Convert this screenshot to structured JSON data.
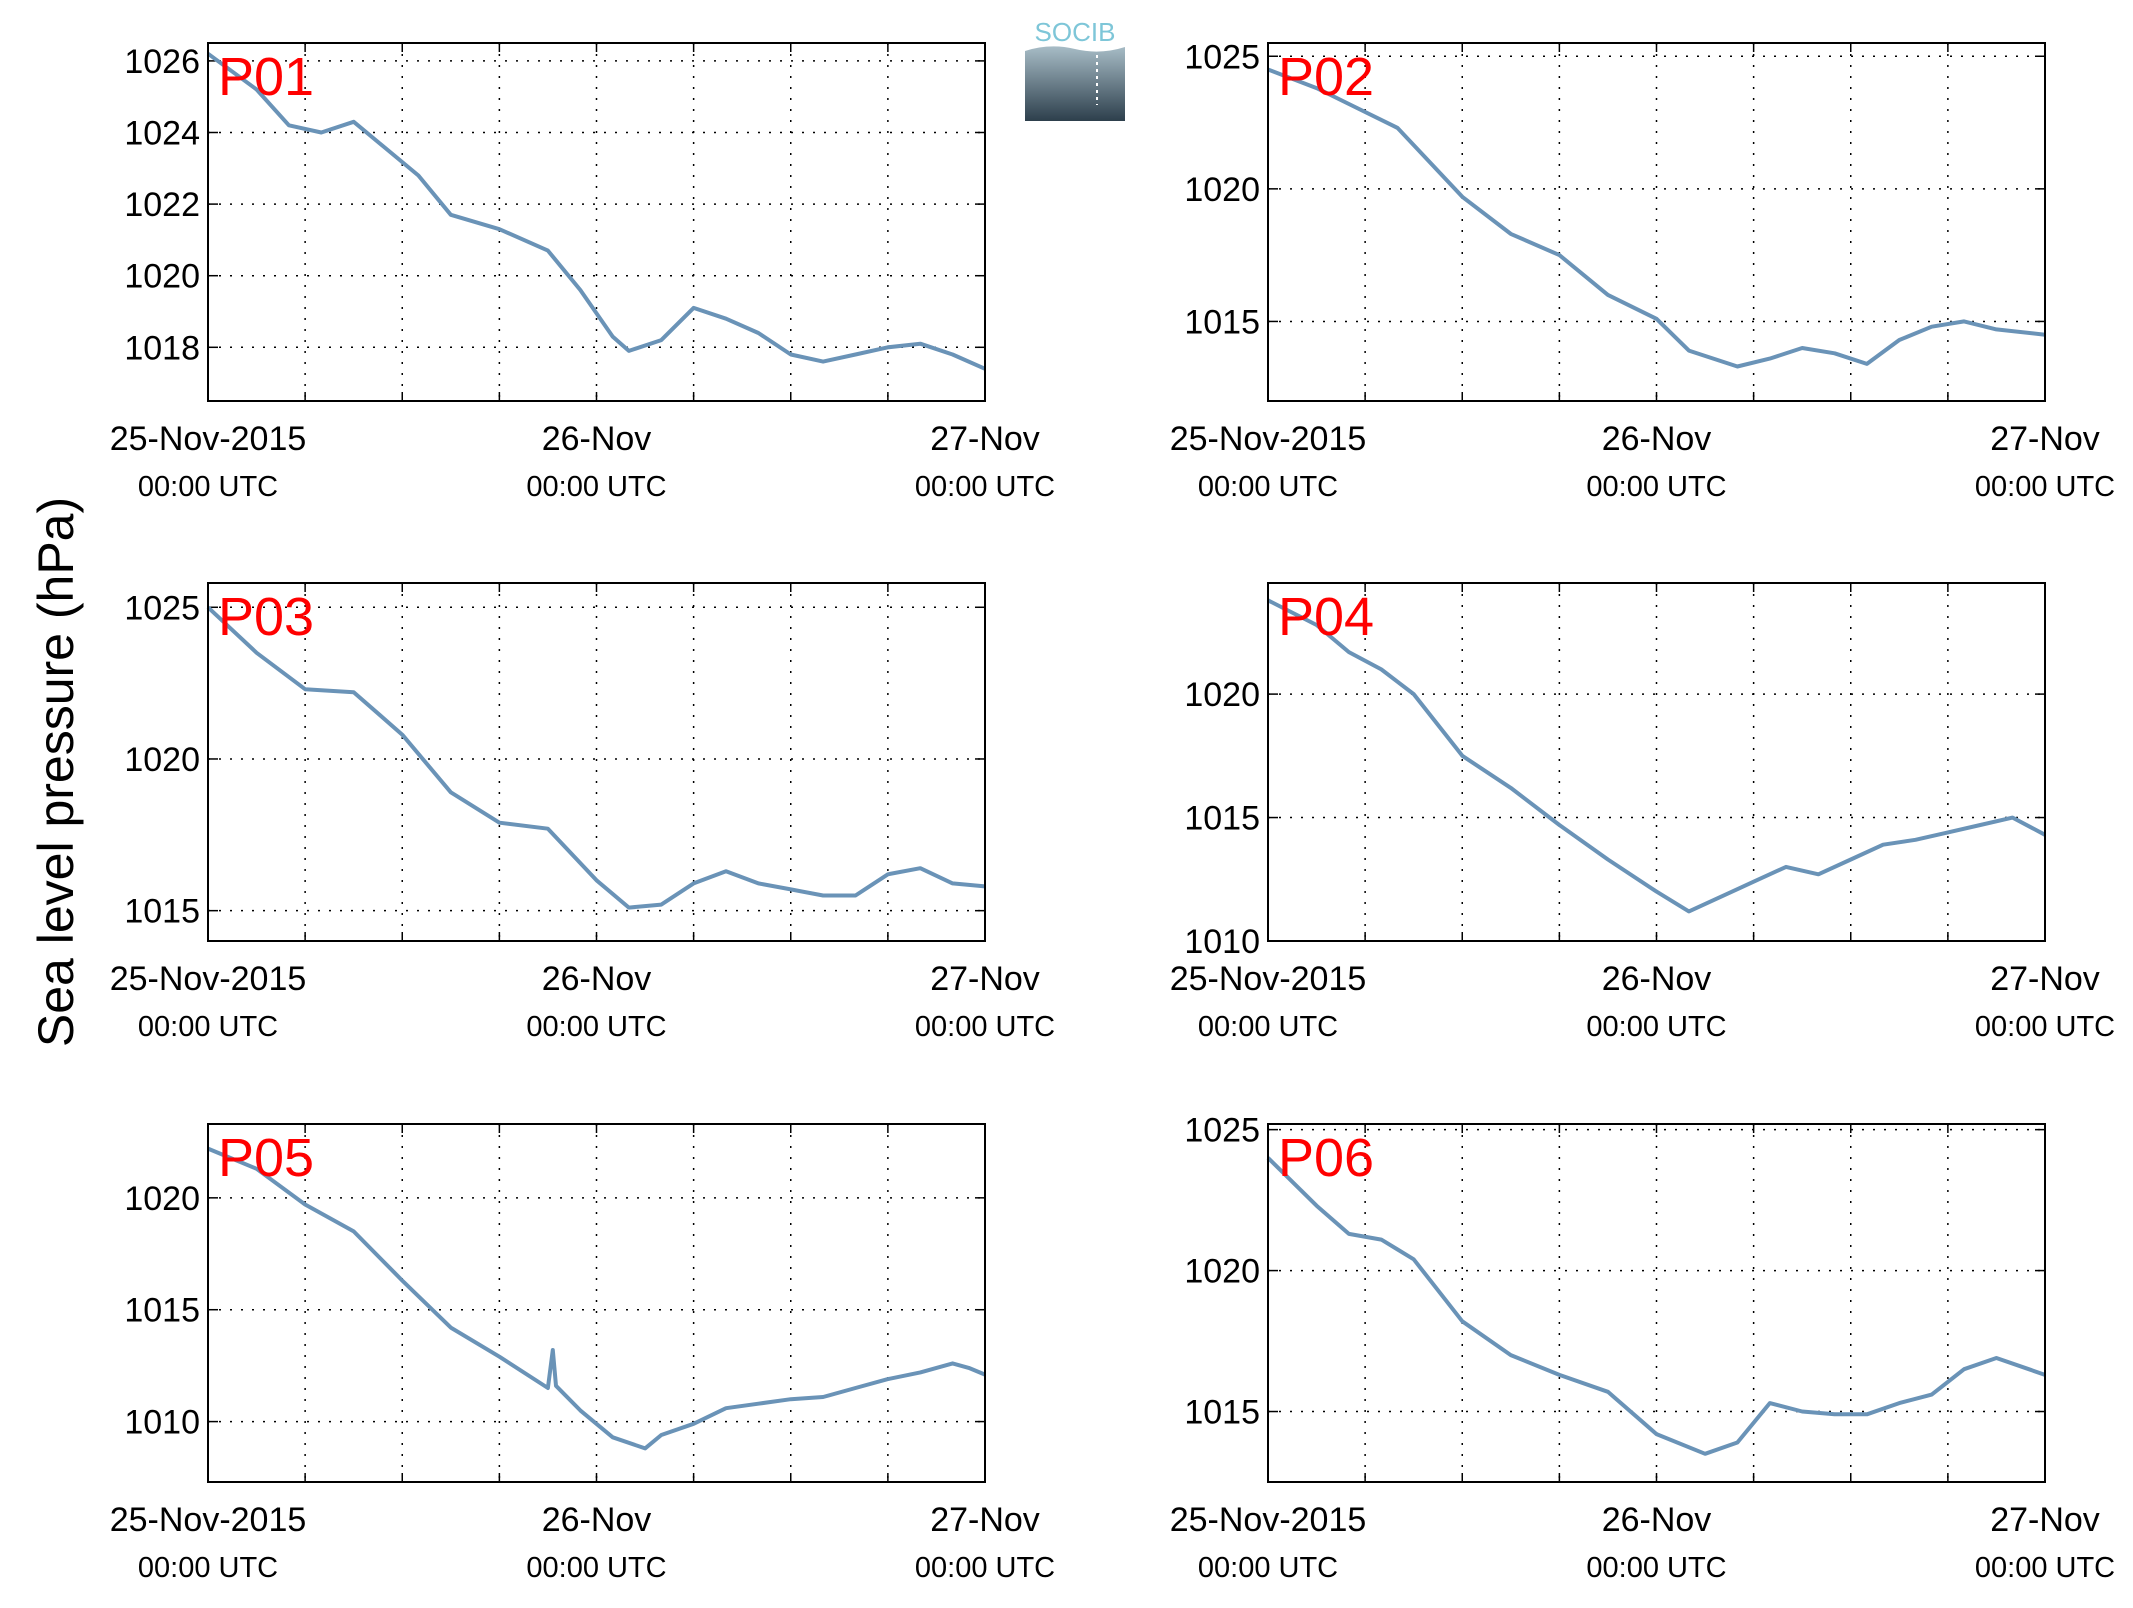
{
  "figure": {
    "ylabel": "Sea level pressure (hPa)",
    "logo_text": "SOCIB"
  },
  "chart_data": [
    {
      "type": "line",
      "station": "P01",
      "x_range": [
        "2015-11-25T00:00",
        "2015-11-27T00:00"
      ],
      "ylim": [
        1016.5,
        1026.5
      ],
      "yticks": [
        1018,
        1020,
        1022,
        1024,
        1026
      ],
      "xtick_labels": [
        [
          "25-Nov-2015",
          "00:00 UTC"
        ],
        [
          "26-Nov",
          "00:00 UTC"
        ],
        [
          "27-Nov",
          "00:00 UTC"
        ]
      ],
      "grid": true,
      "x_hours": [
        0,
        3,
        5,
        7,
        9,
        13,
        15,
        18,
        21,
        23,
        25,
        26,
        28,
        30,
        32,
        34,
        36,
        38,
        40,
        42,
        44,
        46,
        48
      ],
      "values": [
        1026.2,
        1025.2,
        1024.2,
        1024.0,
        1024.3,
        1022.8,
        1021.7,
        1021.3,
        1020.7,
        1019.6,
        1018.3,
        1017.9,
        1018.2,
        1019.1,
        1018.8,
        1018.4,
        1017.8,
        1017.6,
        1017.8,
        1018.0,
        1018.1,
        1017.8,
        1017.4
      ]
    },
    {
      "type": "line",
      "station": "P02",
      "x_range": [
        "2015-11-25T00:00",
        "2015-11-27T00:00"
      ],
      "ylim": [
        1012,
        1025.5
      ],
      "yticks": [
        1015,
        1020,
        1025
      ],
      "xtick_labels": [
        [
          "25-Nov-2015",
          "00:00 UTC"
        ],
        [
          "26-Nov",
          "00:00 UTC"
        ],
        [
          "27-Nov",
          "00:00 UTC"
        ]
      ],
      "grid": true,
      "x_hours": [
        0,
        3,
        5,
        8,
        12,
        15,
        18,
        21,
        24,
        26,
        29,
        31,
        33,
        35,
        37,
        39,
        41,
        43,
        45,
        48
      ],
      "values": [
        1024.5,
        1023.8,
        1023.2,
        1022.3,
        1019.7,
        1018.3,
        1017.5,
        1016.0,
        1015.1,
        1013.9,
        1013.3,
        1013.6,
        1014.0,
        1013.8,
        1013.4,
        1014.3,
        1014.8,
        1015.0,
        1014.7,
        1014.5
      ]
    },
    {
      "type": "line",
      "station": "P03",
      "x_range": [
        "2015-11-25T00:00",
        "2015-11-27T00:00"
      ],
      "ylim": [
        1014,
        1025.8
      ],
      "yticks": [
        1015,
        1020,
        1025
      ],
      "xtick_labels": [
        [
          "25-Nov-2015",
          "00:00 UTC"
        ],
        [
          "26-Nov",
          "00:00 UTC"
        ],
        [
          "27-Nov",
          "00:00 UTC"
        ]
      ],
      "grid": true,
      "x_hours": [
        0,
        3,
        6,
        9,
        12,
        15,
        18,
        21,
        24,
        26,
        28,
        30,
        32,
        34,
        36,
        38,
        40,
        42,
        44,
        46,
        48
      ],
      "values": [
        1025.0,
        1023.5,
        1022.3,
        1022.2,
        1020.8,
        1018.9,
        1017.9,
        1017.7,
        1016.0,
        1015.1,
        1015.2,
        1015.9,
        1016.3,
        1015.9,
        1015.7,
        1015.5,
        1015.5,
        1016.2,
        1016.4,
        1015.9,
        1015.8
      ]
    },
    {
      "type": "line",
      "station": "P04",
      "x_range": [
        "2015-11-25T00:00",
        "2015-11-27T00:00"
      ],
      "ylim": [
        1010,
        1024.5
      ],
      "yticks": [
        1010,
        1015,
        1020
      ],
      "xtick_labels": [
        [
          "25-Nov-2015",
          "00:00 UTC"
        ],
        [
          "26-Nov",
          "00:00 UTC"
        ],
        [
          "27-Nov",
          "00:00 UTC"
        ]
      ],
      "grid": true,
      "x_hours": [
        0,
        3,
        5,
        7,
        9,
        12,
        15,
        18,
        21,
        24,
        26,
        28,
        30,
        32,
        34,
        36,
        38,
        40,
        42,
        44,
        46,
        48
      ],
      "values": [
        1023.8,
        1022.8,
        1021.7,
        1021.0,
        1020.0,
        1017.5,
        1016.2,
        1014.7,
        1013.3,
        1012.0,
        1011.2,
        1011.8,
        1012.4,
        1013.0,
        1012.7,
        1013.3,
        1013.9,
        1014.1,
        1014.4,
        1014.7,
        1015.0,
        1014.3
      ]
    },
    {
      "type": "line",
      "station": "P05",
      "x_range": [
        "2015-11-25T00:00",
        "2015-11-27T00:00"
      ],
      "ylim": [
        1007.3,
        1023.3
      ],
      "yticks": [
        1010,
        1015,
        1020
      ],
      "xtick_labels": [
        [
          "25-Nov-2015",
          "00:00 UTC"
        ],
        [
          "26-Nov",
          "00:00 UTC"
        ],
        [
          "27-Nov",
          "00:00 UTC"
        ]
      ],
      "grid": true,
      "x_hours": [
        0,
        3,
        6,
        9,
        12,
        15,
        18,
        21,
        21.3,
        21.5,
        23,
        25,
        27,
        28,
        30,
        32,
        34,
        36,
        38,
        40,
        42,
        44,
        46,
        47,
        48
      ],
      "values": [
        1022.2,
        1021.3,
        1019.7,
        1018.5,
        1016.3,
        1014.2,
        1012.9,
        1011.5,
        1013.2,
        1011.6,
        1010.5,
        1009.3,
        1008.8,
        1009.4,
        1009.9,
        1010.6,
        1010.8,
        1011.0,
        1011.1,
        1011.5,
        1011.9,
        1012.2,
        1012.6,
        1012.4,
        1012.1
      ]
    },
    {
      "type": "line",
      "station": "P06",
      "x_range": [
        "2015-11-25T00:00",
        "2015-11-27T00:00"
      ],
      "ylim": [
        1012.5,
        1025.2
      ],
      "yticks": [
        1015,
        1020,
        1025
      ],
      "xtick_labels": [
        [
          "25-Nov-2015",
          "00:00 UTC"
        ],
        [
          "26-Nov",
          "00:00 UTC"
        ],
        [
          "27-Nov",
          "00:00 UTC"
        ]
      ],
      "grid": true,
      "x_hours": [
        0,
        3,
        5,
        7,
        9,
        12,
        15,
        18,
        21,
        24,
        27,
        29,
        31,
        33,
        35,
        37,
        39,
        41,
        43,
        45,
        47,
        48
      ],
      "values": [
        1024.0,
        1022.3,
        1021.3,
        1021.1,
        1020.4,
        1018.2,
        1017.0,
        1016.3,
        1015.7,
        1014.2,
        1013.5,
        1013.9,
        1015.3,
        1015.0,
        1014.9,
        1014.9,
        1015.3,
        1015.6,
        1016.5,
        1016.9,
        1016.5,
        1016.3
      ]
    }
  ]
}
